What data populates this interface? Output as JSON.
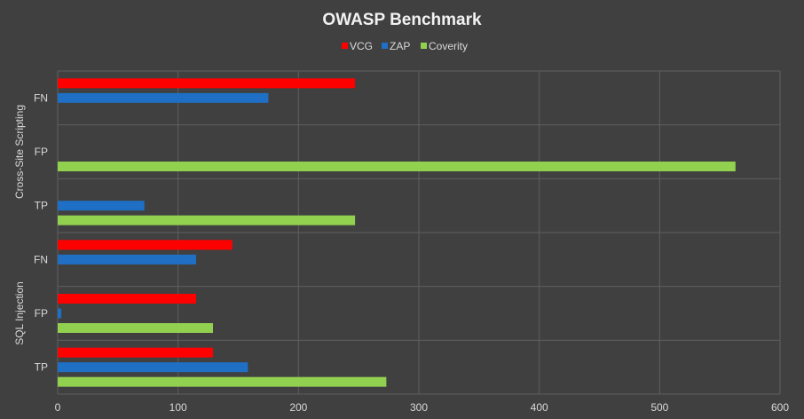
{
  "colors": {
    "background": "#404040",
    "grid": "#5f5f5f",
    "text": "#d9d9d9",
    "title": "#f2f2f2"
  },
  "chart_data": {
    "type": "bar",
    "orientation": "horizontal",
    "title": "OWASP Benchmark",
    "xlim": [
      0,
      600
    ],
    "xticks": [
      0,
      100,
      200,
      300,
      400,
      500,
      600
    ],
    "legend_position": "top",
    "grid": true,
    "groups": [
      {
        "label": "Cross-Site Scripting",
        "categories": [
          "FN",
          "FP",
          "TP"
        ]
      },
      {
        "label": "SQL Injection",
        "categories": [
          "FN",
          "FP",
          "TP"
        ]
      }
    ],
    "categories": [
      "Cross-Site Scripting|FN",
      "Cross-Site Scripting|FP",
      "Cross-Site Scripting|TP",
      "SQL Injection|FN",
      "SQL Injection|FP",
      "SQL Injection|TP"
    ],
    "series": [
      {
        "name": "VCG",
        "color": "#ff0000",
        "values": [
          247,
          0,
          0,
          145,
          115,
          129
        ]
      },
      {
        "name": "ZAP",
        "color": "#1f6fc5",
        "values": [
          175,
          0,
          72,
          115,
          3,
          158
        ]
      },
      {
        "name": "Coverity",
        "color": "#92d050",
        "values": [
          0,
          563,
          247,
          0,
          129,
          273
        ]
      }
    ]
  }
}
